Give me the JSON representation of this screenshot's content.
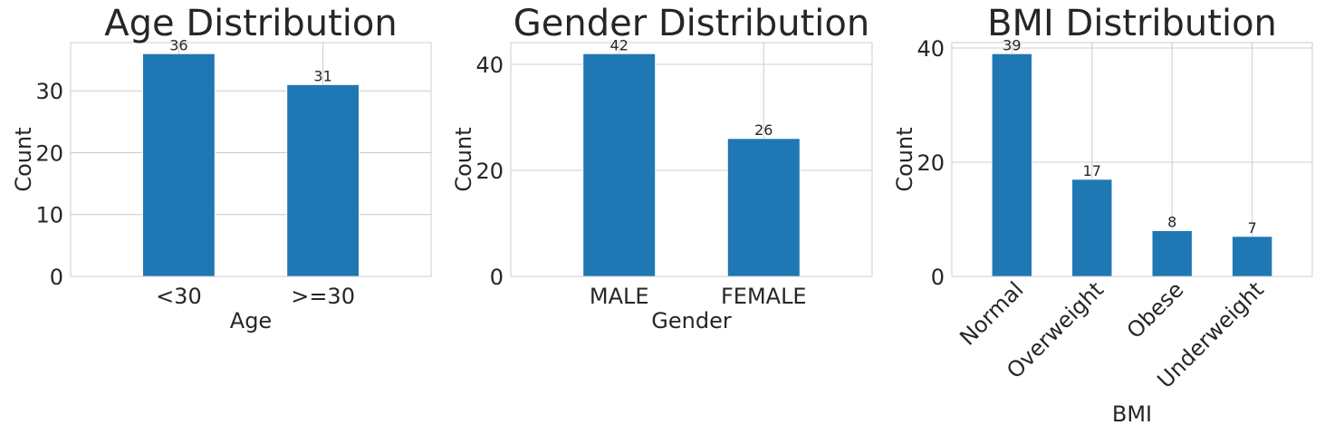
{
  "colors": {
    "bar": "#1f77b4",
    "grid": "#cccccc",
    "text": "#262626"
  },
  "chart_data": [
    {
      "type": "bar",
      "title": "Age Distribution",
      "xlabel": "Age",
      "ylabel": "Count",
      "categories": [
        "<30",
        ">=30"
      ],
      "values": [
        36,
        31
      ],
      "ylim": [
        0,
        37.8
      ],
      "yticks": [
        0,
        10,
        20,
        30
      ],
      "grid": true,
      "xtick_rotation": 0
    },
    {
      "type": "bar",
      "title": "Gender Distribution",
      "xlabel": "Gender",
      "ylabel": "Count",
      "categories": [
        "MALE",
        "FEMALE"
      ],
      "values": [
        42,
        26
      ],
      "ylim": [
        0,
        44.1
      ],
      "yticks": [
        0,
        20,
        40
      ],
      "grid": true,
      "xtick_rotation": 0
    },
    {
      "type": "bar",
      "title": "BMI Distribution",
      "xlabel": "BMI",
      "ylabel": "Count",
      "categories": [
        "Normal",
        "Overweight",
        "Obese",
        "Underweight"
      ],
      "values": [
        39,
        17,
        8,
        7
      ],
      "ylim": [
        0,
        40.95
      ],
      "yticks": [
        0,
        20,
        40
      ],
      "grid": true,
      "xtick_rotation": 45
    }
  ]
}
